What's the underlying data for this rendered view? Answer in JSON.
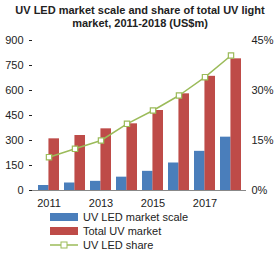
{
  "chart_data": {
    "type": "bar",
    "title": "UV LED market scale and share of total UV light market, 2011-2018 (US$m)",
    "categories": [
      "2011",
      null,
      "2013",
      null,
      "2015",
      null,
      "2017",
      null
    ],
    "series": [
      {
        "name": "UV LED market scale",
        "type": "bar",
        "color": "#4a7ebb",
        "values": [
          30,
          45,
          55,
          80,
          115,
          165,
          235,
          320
        ]
      },
      {
        "name": "Total UV market",
        "type": "bar",
        "color": "#be4b48",
        "values": [
          310,
          330,
          370,
          400,
          480,
          580,
          685,
          790
        ]
      },
      {
        "name": "UV LED share",
        "type": "line",
        "color": "#9bbb59",
        "marker": "square",
        "axis": "y2",
        "values": [
          10,
          12.5,
          15,
          20,
          24,
          28.5,
          34,
          40.5
        ]
      }
    ],
    "ylim": [
      0,
      900
    ],
    "yticks": [
      0,
      150,
      300,
      450,
      600,
      750,
      900
    ],
    "y2lim": [
      0,
      45
    ],
    "y2ticks": [
      {
        "value": 0,
        "label": "0%"
      },
      {
        "value": 15,
        "label": "15%"
      },
      {
        "value": 30,
        "label": "30%"
      },
      {
        "value": 45,
        "label": "45%"
      }
    ],
    "grid": false,
    "legend": "bottom"
  }
}
